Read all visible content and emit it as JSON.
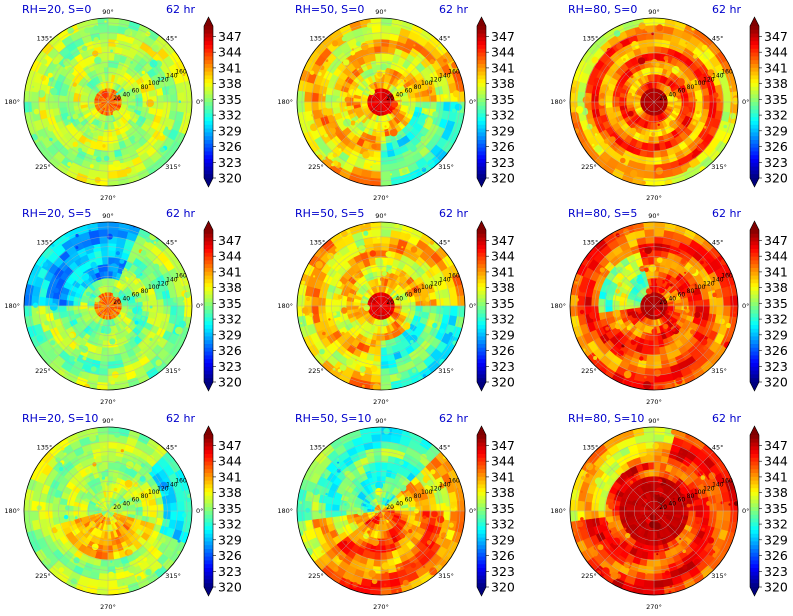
{
  "chart_data": {
    "type": "heatmap",
    "projection": "polar",
    "time_label": "62 hr",
    "angle_ticks": [
      "0°",
      "45°",
      "90°",
      "135°",
      "180°",
      "225°",
      "270°",
      "315°"
    ],
    "radial_ticks": [
      "20",
      "40",
      "60",
      "80",
      "100",
      "120",
      "140",
      "160"
    ],
    "radial_range": [
      0,
      170
    ],
    "colorbar": {
      "ticks": [
        "320",
        "323",
        "326",
        "329",
        "332",
        "335",
        "338",
        "341",
        "344",
        "347"
      ],
      "range": [
        320,
        349
      ],
      "colormap": "jet",
      "extend": "both"
    },
    "panels": [
      {
        "title": "RH=20, S=0",
        "regime": "dry_core"
      },
      {
        "title": "RH=50, S=0",
        "regime": "mid_core"
      },
      {
        "title": "RH=80, S=0",
        "regime": "moist_rings"
      },
      {
        "title": "RH=20, S=5",
        "regime": "dry_core_blue_nw"
      },
      {
        "title": "RH=50, S=5",
        "regime": "mid_core"
      },
      {
        "title": "RH=80, S=5",
        "regime": "moist_patchy"
      },
      {
        "title": "RH=20, S=10",
        "regime": "dry_scattered"
      },
      {
        "title": "RH=50, S=10",
        "regime": "mid_sheared"
      },
      {
        "title": "RH=80, S=10",
        "regime": "moist_core_large"
      }
    ]
  },
  "colors": {
    "title": "#0000cc",
    "jet": [
      "#00007f",
      "#0000ff",
      "#007fff",
      "#00ffff",
      "#7fff7f",
      "#ffff00",
      "#ff7f00",
      "#ff0000",
      "#7f0000"
    ]
  }
}
